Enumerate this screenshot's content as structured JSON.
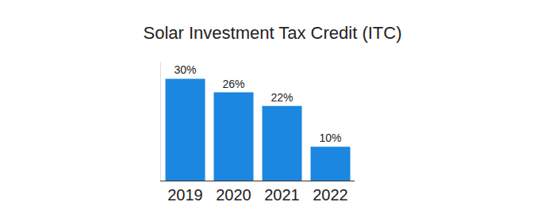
{
  "chart_data": {
    "type": "bar",
    "title": "Solar Investment Tax Credit (ITC)",
    "categories": [
      "2019",
      "2020",
      "2021",
      "2022"
    ],
    "values": [
      30,
      26,
      22,
      10
    ],
    "value_labels": [
      "30%",
      "26%",
      "22%",
      "10%"
    ],
    "data_labels": true,
    "color": "#1b87e0",
    "ylim": [
      0,
      35
    ],
    "tick_labels": "x",
    "grid": false
  }
}
